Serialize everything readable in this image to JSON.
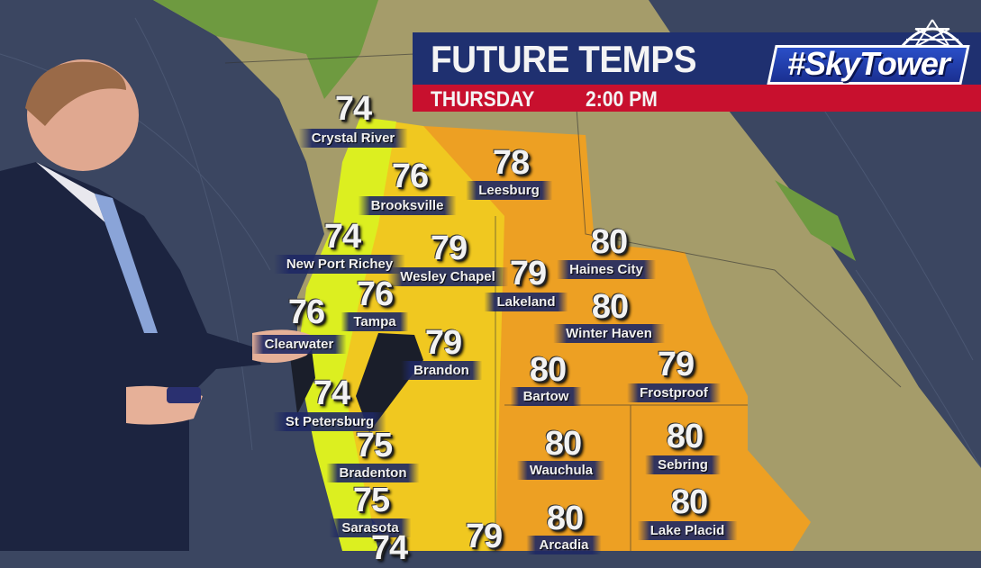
{
  "header": {
    "title": "FUTURE TEMPS",
    "day": "THURSDAY",
    "time": "2:00 PM",
    "logo": "#SkyTower"
  },
  "colors": {
    "title_bar": "#1f3070",
    "sub_bar": "#c8102e",
    "ocean": "#3b4661",
    "land": "#a59c6a",
    "cool_temp": "#e8f020",
    "warm_temp": "#f0a020"
  },
  "cities": [
    {
      "name": "Crystal River",
      "temp": "74"
    },
    {
      "name": "Brooksville",
      "temp": "76"
    },
    {
      "name": "Leesburg",
      "temp": "78"
    },
    {
      "name": "New Port Richey",
      "temp": "74"
    },
    {
      "name": "Wesley Chapel",
      "temp": "79"
    },
    {
      "name": "Haines City",
      "temp": "80"
    },
    {
      "name": "Lakeland",
      "temp": "79"
    },
    {
      "name": "Tampa",
      "temp": "76"
    },
    {
      "name": "Winter Haven",
      "temp": "80"
    },
    {
      "name": "Clearwater",
      "temp": "76"
    },
    {
      "name": "Brandon",
      "temp": "79"
    },
    {
      "name": "Bartow",
      "temp": "80"
    },
    {
      "name": "Frostproof",
      "temp": "79"
    },
    {
      "name": "St Petersburg",
      "temp": "74"
    },
    {
      "name": "Bradenton",
      "temp": "75"
    },
    {
      "name": "Wauchula",
      "temp": "80"
    },
    {
      "name": "Sebring",
      "temp": "80"
    },
    {
      "name": "Sarasota",
      "temp": "75"
    },
    {
      "name": "Lake Placid",
      "temp": "80"
    },
    {
      "name": "",
      "temp": "79"
    },
    {
      "name": "Arcadia",
      "temp": "80"
    },
    {
      "name": "",
      "temp": "74"
    }
  ]
}
